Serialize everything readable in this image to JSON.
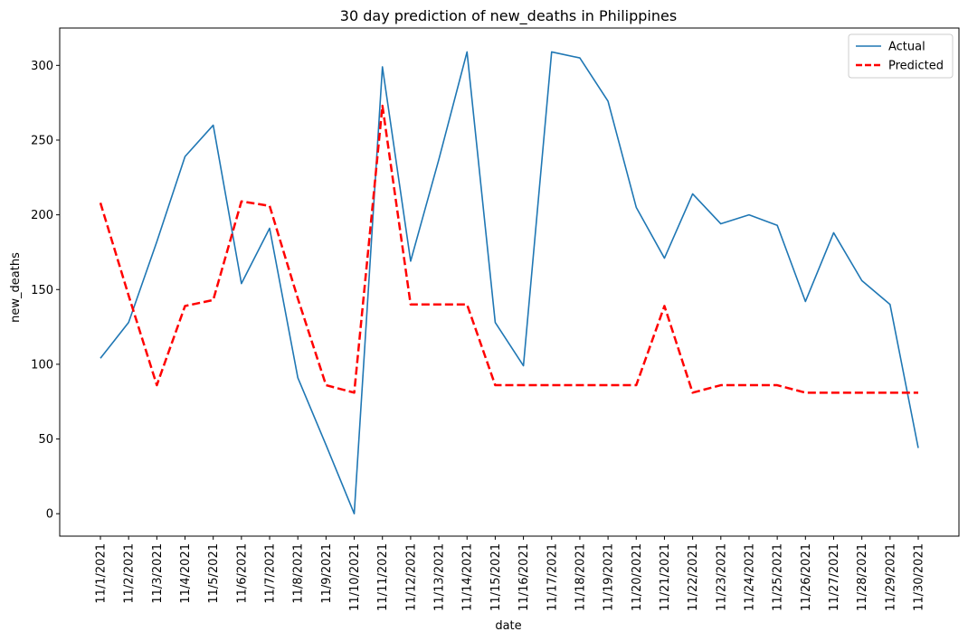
{
  "chart_data": {
    "type": "line",
    "title": "30 day prediction of new_deaths in Philippines",
    "xlabel": "date",
    "ylabel": "new_deaths",
    "ylim": [
      -15,
      325
    ],
    "yticks": [
      0,
      50,
      100,
      150,
      200,
      250,
      300
    ],
    "grid": false,
    "legend_position": "top-right",
    "categories": [
      "11/1/2021",
      "11/2/2021",
      "11/3/2021",
      "11/4/2021",
      "11/5/2021",
      "11/6/2021",
      "11/7/2021",
      "11/8/2021",
      "11/9/2021",
      "11/10/2021",
      "11/11/2021",
      "11/12/2021",
      "11/13/2021",
      "11/14/2021",
      "11/15/2021",
      "11/16/2021",
      "11/17/2021",
      "11/18/2021",
      "11/19/2021",
      "11/20/2021",
      "11/21/2021",
      "11/22/2021",
      "11/23/2021",
      "11/24/2021",
      "11/25/2021",
      "11/26/2021",
      "11/27/2021",
      "11/28/2021",
      "11/29/2021",
      "11/30/2021"
    ],
    "series": [
      {
        "name": "Actual",
        "color": "#1f77b4",
        "style": "solid",
        "values": [
          104,
          128,
          182,
          239,
          260,
          154,
          191,
          91,
          46,
          0,
          299,
          169,
          237,
          309,
          128,
          99,
          309,
          305,
          276,
          205,
          171,
          214,
          194,
          200,
          193,
          142,
          188,
          156,
          140,
          44
        ]
      },
      {
        "name": "Predicted",
        "color": "#ff0000",
        "style": "dashed",
        "values": [
          208,
          146,
          86,
          139,
          143,
          209,
          206,
          144,
          86,
          81,
          273,
          140,
          140,
          140,
          86,
          86,
          86,
          86,
          86,
          86,
          139,
          81,
          86,
          86,
          86,
          81,
          81,
          81,
          81,
          81
        ]
      }
    ]
  }
}
